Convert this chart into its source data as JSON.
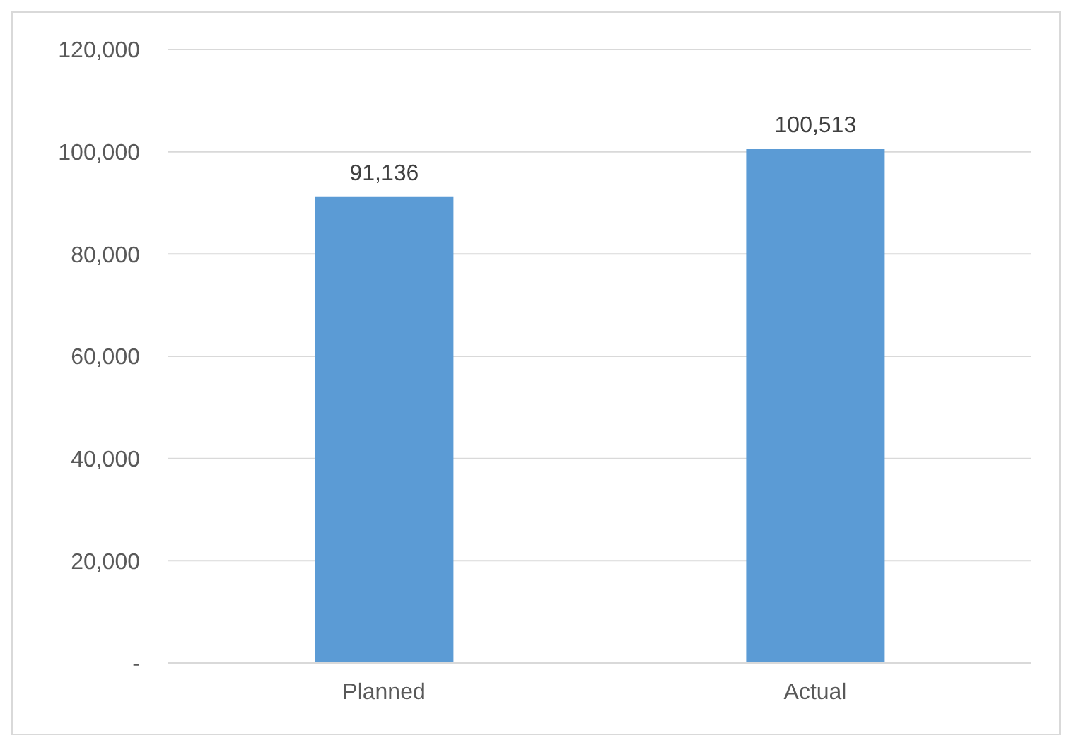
{
  "chart_data": {
    "type": "bar",
    "categories": [
      "Planned",
      "Actual"
    ],
    "values": [
      91136,
      100513
    ],
    "color": "#5b9bd5",
    "ylim": [
      0,
      120000
    ],
    "yticks": [
      {
        "value": 0,
        "label": "-"
      },
      {
        "value": 20000,
        "label": "20,000"
      },
      {
        "value": 40000,
        "label": "40,000"
      },
      {
        "value": 60000,
        "label": "60,000"
      },
      {
        "value": 80000,
        "label": "80,000"
      },
      {
        "value": 100000,
        "label": "100,000"
      },
      {
        "value": 120000,
        "label": "120,000"
      }
    ],
    "grid": "y",
    "value_labels": [
      "91,136",
      "100,513"
    ]
  }
}
